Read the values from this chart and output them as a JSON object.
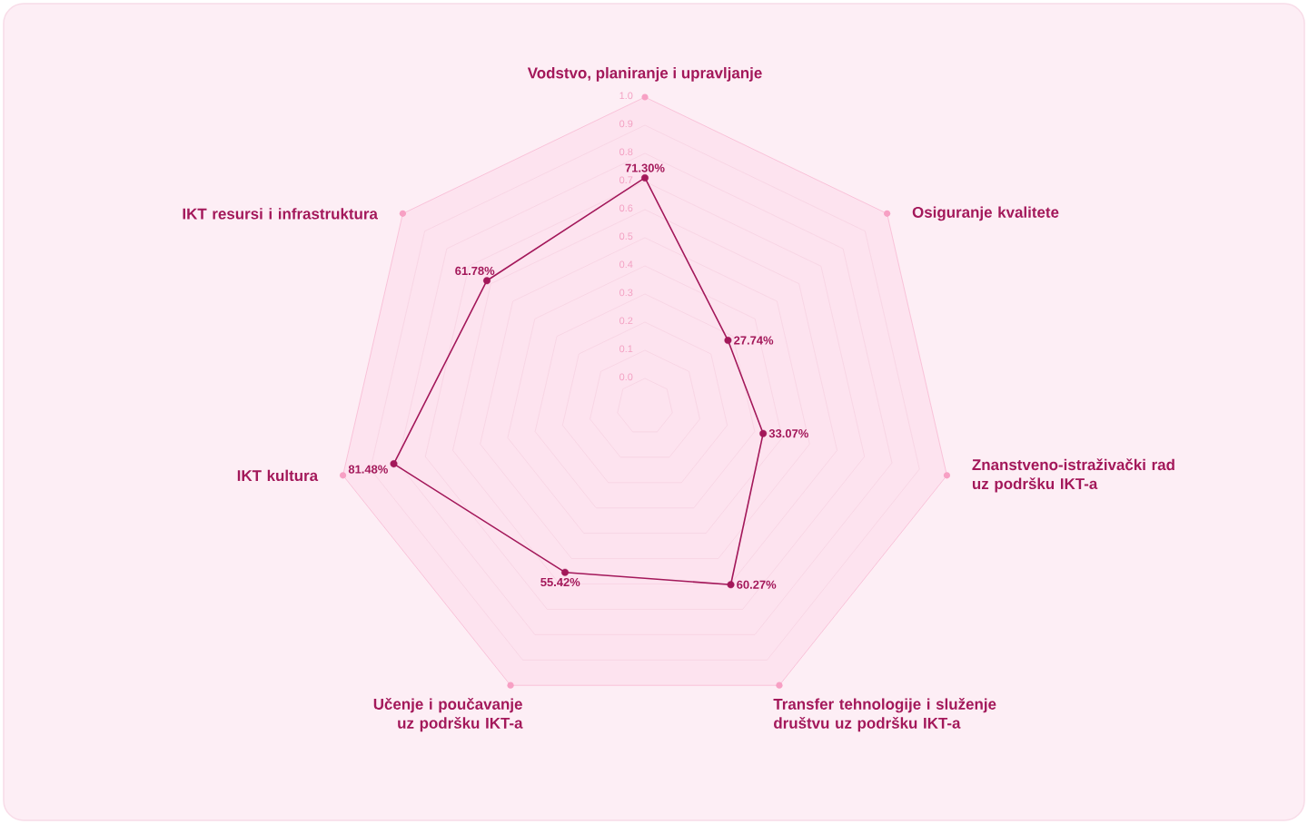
{
  "chart_data": {
    "type": "radar",
    "categories": [
      "Vodstvo, planiranje i upravljanje",
      "Osiguranje kvalitete",
      "Znanstveno-istraživački rad uz podršku IKT-a",
      "Transfer tehnologije i služenje društvu uz podršku IKT-a",
      "Učenje i poučavanje uz podršku IKT-a",
      "IKT kultura",
      "IKT resursi i infrastruktura"
    ],
    "series": [
      {
        "color": "#a3185a",
        "values": [
          0.713,
          0.2774,
          0.3307,
          0.6027,
          0.5542,
          0.8148,
          0.6178
        ],
        "value_labels": [
          "71.30%",
          "27.74%",
          "33.07%",
          "60.27%",
          "55.42%",
          "81.48%",
          "61.78%"
        ]
      }
    ],
    "ylim": [
      -0.1,
      1.0
    ],
    "yticks": [
      {
        "value": 0,
        "label": "0.0"
      },
      0.1,
      0.2,
      0.3,
      0.4,
      0.5,
      0.6,
      0.7,
      0.8,
      0.9,
      {
        "value": 1,
        "label": "1.0"
      }
    ],
    "grid": true,
    "marker": "circle"
  }
}
